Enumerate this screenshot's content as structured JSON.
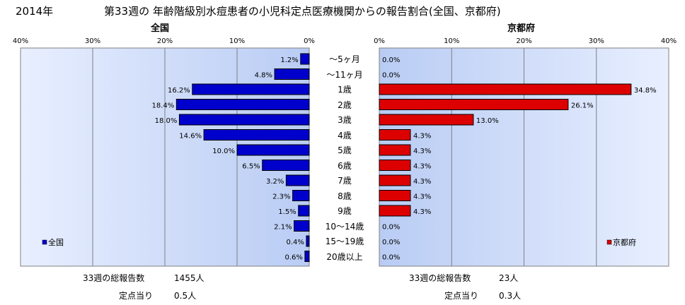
{
  "header": {
    "year": "2014年",
    "title": "第33週の 年齢階級別水痘患者の小児科定点医療機関からの報告割合(全国、京都府)"
  },
  "colors": {
    "national_bar": "#0000cc",
    "kyoto_bar": "#dd0000",
    "plot_bg_light": "#e6eeff",
    "plot_bg_dark": "#b8cbf4",
    "grid": "#7f7f7f"
  },
  "chart_data": [
    {
      "type": "bar",
      "orientation": "horizontal",
      "direction": "right-to-left",
      "title": "全国",
      "xlim": [
        0,
        40
      ],
      "ticks": [
        "40%",
        "30%",
        "20%",
        "10%",
        "0%"
      ],
      "categories": [
        "～5ヶ月",
        "～11ヶ月",
        "1歳",
        "2歳",
        "3歳",
        "4歳",
        "5歳",
        "6歳",
        "7歳",
        "8歳",
        "9歳",
        "10～14歳",
        "15～19歳",
        "20歳以上"
      ],
      "values": [
        1.2,
        4.8,
        16.2,
        18.4,
        18.0,
        14.6,
        10.0,
        6.5,
        3.2,
        2.3,
        1.5,
        2.1,
        0.4,
        0.6
      ],
      "value_labels": [
        "1.2%",
        "4.8%",
        "16.2%",
        "18.4%",
        "18.0%",
        "14.6%",
        "10.0%",
        "6.5%",
        "3.2%",
        "2.3%",
        "1.5%",
        "2.1%",
        "0.4%",
        "0.6%"
      ],
      "legend": "全国",
      "legend_position": "bottom-left",
      "grid": true
    },
    {
      "type": "bar",
      "orientation": "horizontal",
      "direction": "left-to-right",
      "title": "京都府",
      "xlim": [
        0,
        40
      ],
      "ticks": [
        "0%",
        "10%",
        "20%",
        "30%",
        "40%"
      ],
      "categories": [
        "～5ヶ月",
        "～11ヶ月",
        "1歳",
        "2歳",
        "3歳",
        "4歳",
        "5歳",
        "6歳",
        "7歳",
        "8歳",
        "9歳",
        "10～14歳",
        "15～19歳",
        "20歳以上"
      ],
      "values": [
        0.0,
        0.0,
        34.8,
        26.1,
        13.0,
        4.3,
        4.3,
        4.3,
        4.3,
        4.3,
        4.3,
        0.0,
        0.0,
        0.0
      ],
      "value_labels": [
        "0.0%",
        "0.0%",
        "34.8%",
        "26.1%",
        "13.0%",
        "4.3%",
        "4.3%",
        "4.3%",
        "4.3%",
        "4.3%",
        "4.3%",
        "0.0%",
        "0.0%",
        "0.0%"
      ],
      "legend": "京都府",
      "legend_position": "bottom-right",
      "grid": true
    }
  ],
  "footer": {
    "national": {
      "total_label": "33週の総報告数",
      "total_value": "1455人",
      "per_label": "定点当り",
      "per_value": "0.5人"
    },
    "kyoto": {
      "total_label": "33週の総報告数",
      "total_value": "23人",
      "per_label": "定点当り",
      "per_value": "0.3人"
    }
  }
}
